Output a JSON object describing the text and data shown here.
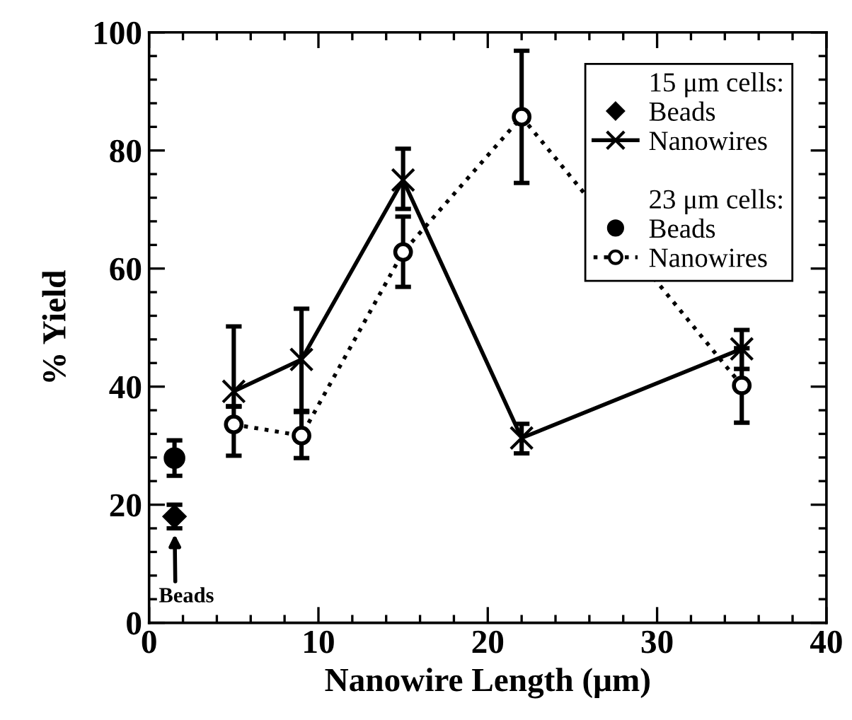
{
  "chart_data": {
    "type": "line",
    "xlabel": "Nanowire Length (μm)",
    "ylabel": "% Yield",
    "xlim": [
      0,
      40
    ],
    "xticks": [
      0,
      10,
      20,
      30,
      40
    ],
    "ylim": [
      0,
      100
    ],
    "yticks": [
      0,
      20,
      40,
      60,
      80,
      100
    ],
    "grid": false,
    "legend": "top right",
    "annotations": [
      "15 μm cells:",
      "23 μm cells:",
      "Beads"
    ],
    "series": [
      {
        "name": "Beads",
        "type": "scatter",
        "marker": "diamond",
        "color": "#000000",
        "x": [
          1.5
        ],
        "values": [
          18.0
        ],
        "errors": [
          2
        ]
      },
      {
        "name": "Nanowires",
        "marker": "cross",
        "line_style": "solid",
        "color": "#000000",
        "x": [
          5,
          9,
          15,
          22,
          35
        ],
        "values": [
          39.2,
          44.6,
          75.0,
          31.3,
          46.4
        ],
        "errors": [
          [
            36.6,
            50.2
          ],
          [
            35.7,
            53.2
          ],
          [
            70.1,
            80.3
          ],
          [
            28.7,
            33.7
          ],
          [
            43.0,
            49.6
          ]
        ]
      },
      {
        "name": "Beads",
        "type": "scatter",
        "marker": "circle",
        "color": "#000000",
        "x": [
          1.5
        ],
        "values": [
          27.9
        ],
        "errors": [
          3
        ]
      },
      {
        "name": "Nanowires",
        "marker": "circle",
        "line_style": "dotted",
        "color": "#000000",
        "x": [
          5,
          9,
          15,
          22,
          35
        ],
        "values": [
          33.6,
          31.7,
          62.8,
          85.7,
          40.2
        ],
        "errors": [
          [
            28.3,
            36.7
          ],
          [
            27.9,
            35.9
          ],
          [
            56.9,
            68.8
          ],
          [
            74.5,
            96.9
          ],
          [
            33.9,
            46.5
          ]
        ]
      }
    ]
  }
}
